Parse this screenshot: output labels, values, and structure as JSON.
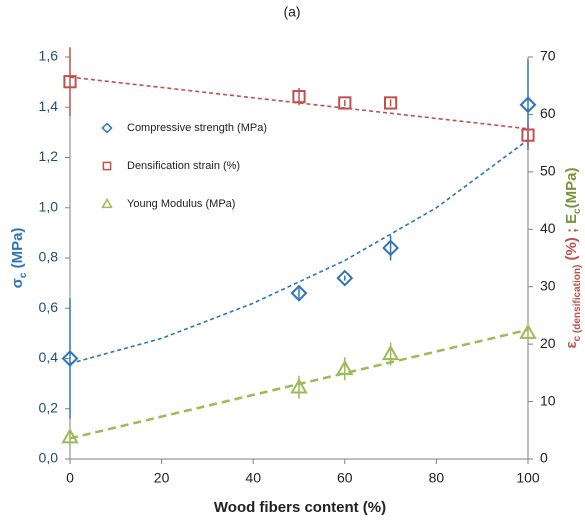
{
  "chart_data": {
    "type": "scatter",
    "title": "(a)",
    "x_label": "Wood fibers content (%)",
    "y_label": [
      {
        "text": "σ",
        "color": "#2e75b6"
      },
      {
        "text": "c",
        "subscript": true,
        "color": "#2e75b6"
      },
      {
        "text": " (MPa)",
        "color": "#2e75b6"
      }
    ],
    "y2_label": [
      {
        "text": "ε",
        "color": "#c0504d"
      },
      {
        "text": "c (densification)",
        "subscript": true,
        "color": "#c0504d"
      },
      {
        "text": " (%) ; ",
        "color": "#c0504d"
      },
      {
        "text": "E",
        "color": "#77933c"
      },
      {
        "text": "c",
        "subscript": true,
        "color": "#77933c"
      },
      {
        "text": "(MPa)",
        "color": "#77933c"
      }
    ],
    "xlim": [
      0,
      100
    ],
    "xticks": [
      0,
      20,
      40,
      60,
      80,
      100
    ],
    "ylim": [
      0,
      1.6
    ],
    "yticks": [
      {
        "value": 0,
        "label": "0,0"
      },
      {
        "value": 0.2,
        "label": "0,2"
      },
      {
        "value": 0.4,
        "label": "0,4"
      },
      {
        "value": 0.6,
        "label": "0,6"
      },
      {
        "value": 0.8,
        "label": "0,8"
      },
      {
        "value": 1.0,
        "label": "1,0"
      },
      {
        "value": 1.2,
        "label": "1,2"
      },
      {
        "value": 1.4,
        "label": "1,4"
      },
      {
        "value": 1.6,
        "label": "1,6"
      }
    ],
    "y2lim": [
      0,
      70
    ],
    "y2ticks": [
      0,
      10,
      20,
      30,
      40,
      50,
      60,
      70
    ],
    "grid": false,
    "legend": "upper left",
    "series": [
      {
        "name": "Compressive strength (MPa)",
        "color": "#2e75b6",
        "marker": "diamond",
        "axis": "y",
        "x": [
          0,
          50,
          60,
          70,
          100
        ],
        "values": [
          0.4,
          0.66,
          0.72,
          0.84,
          1.41
        ],
        "errors": [
          0.24,
          0.02,
          0.01,
          0.05,
          0.18
        ],
        "trendline": {
          "x": [
            0,
            20,
            40,
            60,
            80,
            100
          ],
          "values": [
            0.38,
            0.48,
            0.62,
            0.79,
            1.0,
            1.27
          ]
        }
      },
      {
        "name": "Densification strain (%)",
        "color": "#c0504d",
        "marker": "square",
        "axis": "y2",
        "x": [
          0,
          50,
          60,
          70,
          100
        ],
        "values": [
          65.7,
          63.1,
          62.0,
          62.0,
          56.4
        ],
        "errors": [
          6,
          1.5,
          0.5,
          0.6,
          2
        ],
        "trendline": {
          "x": [
            0,
            100
          ],
          "values": [
            66.5,
            57.5
          ]
        }
      },
      {
        "name": "Young Modulus (MPa)",
        "color": "#9bbb59",
        "marker": "triangle",
        "axis": "y2",
        "x": [
          0,
          50,
          60,
          70,
          100
        ],
        "values": [
          3.8,
          12.5,
          15.7,
          18.3,
          22
        ],
        "errors": [
          0.5,
          2,
          2,
          2,
          1
        ],
        "trendline": {
          "x": [
            0,
            100
          ],
          "values": [
            3.6,
            22.5
          ]
        }
      }
    ]
  }
}
